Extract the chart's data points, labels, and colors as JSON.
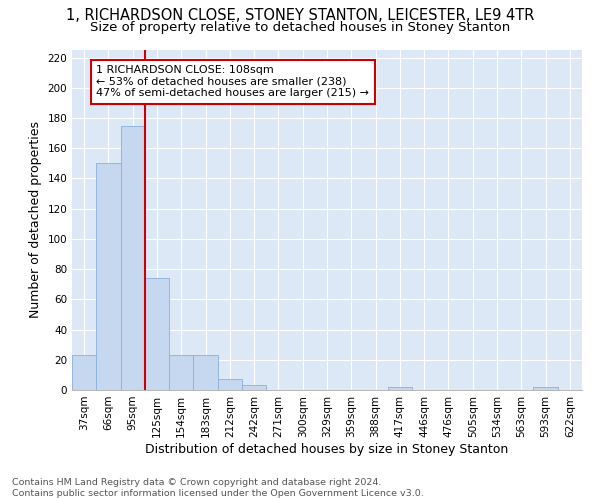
{
  "title": "1, RICHARDSON CLOSE, STONEY STANTON, LEICESTER, LE9 4TR",
  "subtitle": "Size of property relative to detached houses in Stoney Stanton",
  "xlabel": "Distribution of detached houses by size in Stoney Stanton",
  "ylabel": "Number of detached properties",
  "footer_line1": "Contains HM Land Registry data © Crown copyright and database right 2024.",
  "footer_line2": "Contains public sector information licensed under the Open Government Licence v3.0.",
  "bin_labels": [
    "37sqm",
    "66sqm",
    "95sqm",
    "125sqm",
    "154sqm",
    "183sqm",
    "212sqm",
    "242sqm",
    "271sqm",
    "300sqm",
    "329sqm",
    "359sqm",
    "388sqm",
    "417sqm",
    "446sqm",
    "476sqm",
    "505sqm",
    "534sqm",
    "563sqm",
    "593sqm",
    "622sqm"
  ],
  "bar_values": [
    23,
    150,
    175,
    74,
    23,
    23,
    7,
    3,
    0,
    0,
    0,
    0,
    0,
    2,
    0,
    0,
    0,
    0,
    0,
    2,
    0
  ],
  "bar_color": "#c5d8f0",
  "bar_edge_color": "#8ab0d8",
  "vline_x": 3.0,
  "vline_color": "#cc0000",
  "annotation_text": "1 RICHARDSON CLOSE: 108sqm\n← 53% of detached houses are smaller (238)\n47% of semi-detached houses are larger (215) →",
  "annotation_box_color": "#ffffff",
  "annotation_box_edge": "#cc0000",
  "ylim": [
    0,
    225
  ],
  "yticks": [
    0,
    20,
    40,
    60,
    80,
    100,
    120,
    140,
    160,
    180,
    200,
    220
  ],
  "plot_bg_color": "#dce8f5",
  "fig_bg_color": "#ffffff",
  "title_fontsize": 10.5,
  "subtitle_fontsize": 9.5,
  "tick_fontsize": 7.5,
  "label_fontsize": 9,
  "footer_fontsize": 6.8
}
